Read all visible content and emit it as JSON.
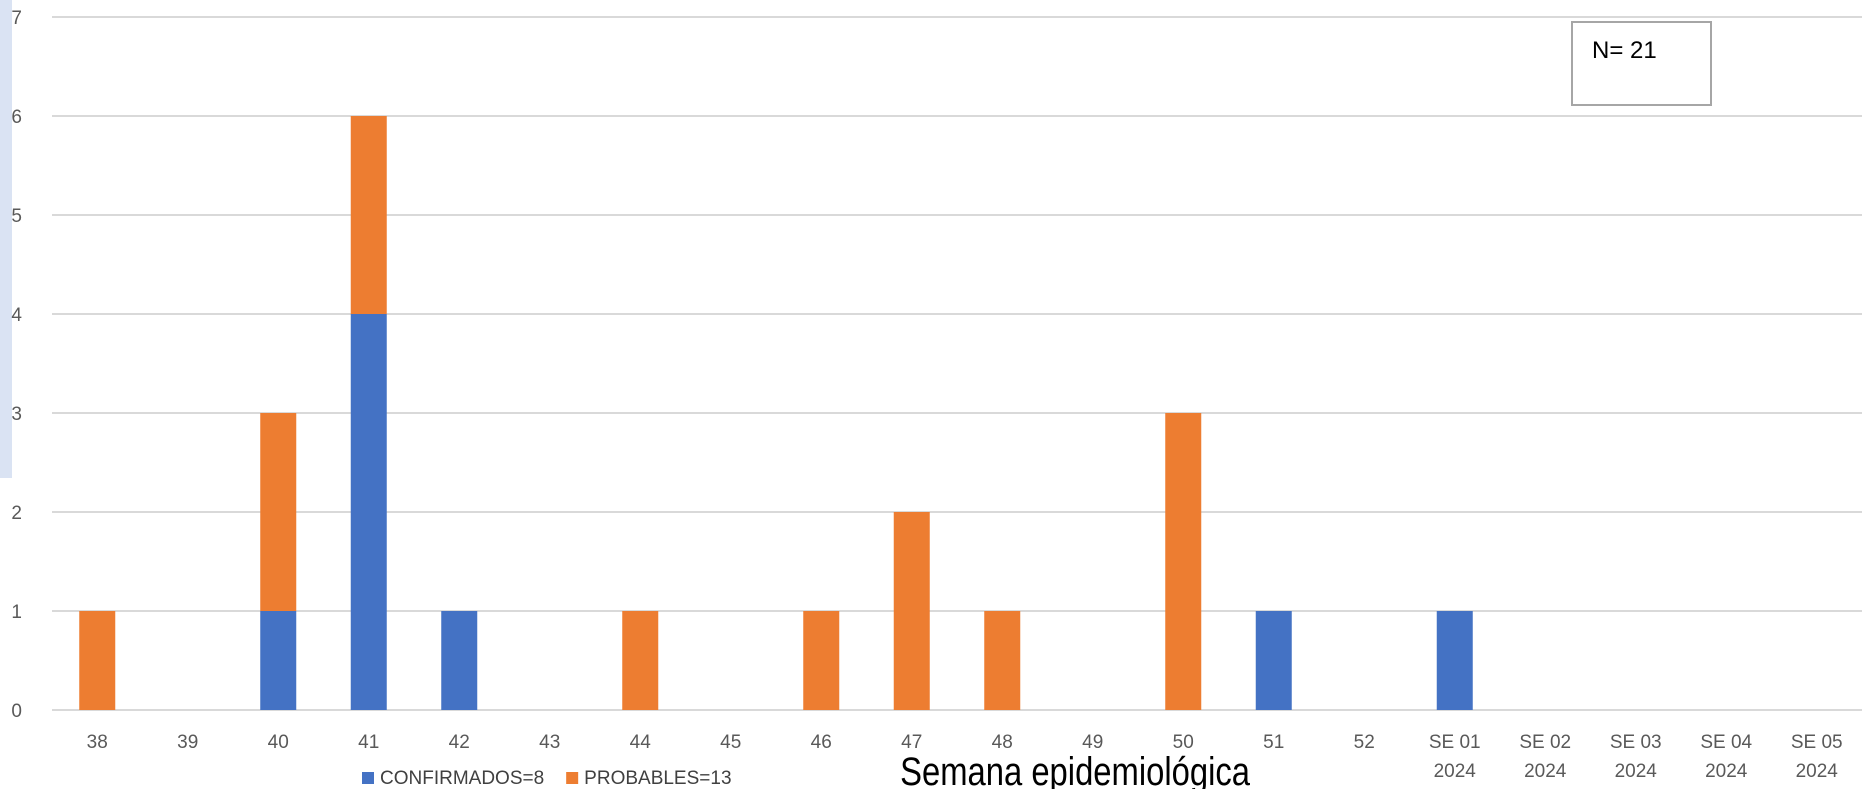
{
  "chart_data": {
    "type": "bar",
    "stacked": true,
    "categories": [
      "38",
      "39",
      "40",
      "41",
      "42",
      "43",
      "44",
      "45",
      "46",
      "47",
      "48",
      "49",
      "50",
      "51",
      "52",
      "SE 01 2024",
      "SE 02 2024",
      "SE 03 2024",
      "SE 04 2024",
      "SE 05 2024"
    ],
    "series": [
      {
        "name": "CONFIRMADOS=8",
        "color": "#4472C4",
        "values": [
          0,
          0,
          1,
          4,
          1,
          0,
          0,
          0,
          0,
          0,
          0,
          0,
          0,
          1,
          0,
          1,
          0,
          0,
          0,
          0
        ]
      },
      {
        "name": "PROBABLES=13",
        "color": "#ED7D31",
        "values": [
          1,
          0,
          2,
          2,
          0,
          0,
          1,
          0,
          1,
          2,
          1,
          0,
          3,
          0,
          0,
          0,
          0,
          0,
          0,
          0
        ]
      }
    ],
    "xlabel": "Semana epidemiológica",
    "ylabel": "",
    "ylim": [
      0,
      7
    ],
    "yticks": [
      0,
      1,
      2,
      3,
      4,
      5,
      6,
      7
    ],
    "grid": true,
    "legend": "bottom",
    "annotation": "N= 21"
  }
}
